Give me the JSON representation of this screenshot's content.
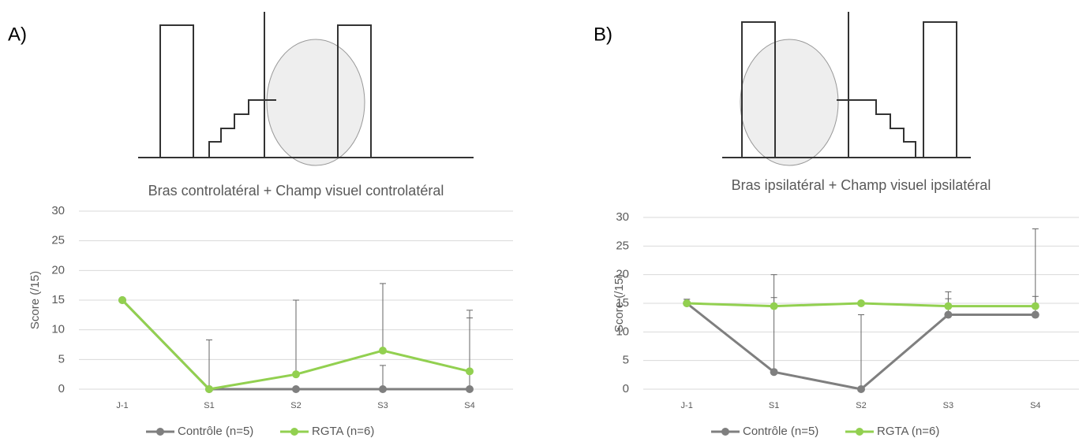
{
  "chart_data": [
    {
      "type": "line",
      "label": "A)",
      "title": "Bras controlatéral + Champ visuel controlatéral",
      "ylabel": "Score (/15)",
      "categories": [
        "J-1",
        "S1",
        "S2",
        "S3",
        "S4"
      ],
      "series": [
        {
          "name": "Contrôle (n=5)",
          "color": "#7f7f7f",
          "values": [
            15,
            0,
            0,
            0,
            0
          ],
          "errors": [
            0,
            0,
            0,
            4,
            12
          ]
        },
        {
          "name": "RGTA (n=6)",
          "color": "#92d050",
          "values": [
            15,
            0,
            2.5,
            6.5,
            3
          ],
          "errors": [
            0,
            8.3,
            12.5,
            11.3,
            10.3
          ]
        }
      ],
      "ylim": [
        0,
        30
      ],
      "yticks": [
        0,
        5,
        10,
        15,
        20,
        25,
        30
      ],
      "grid": true,
      "legend": "bottom"
    },
    {
      "type": "line",
      "label": "B)",
      "title": "Bras ipsilatéral + Champ visuel ipsilatéral",
      "ylabel": "Score (/15)",
      "categories": [
        "J-1",
        "S1",
        "S2",
        "S3",
        "S4"
      ],
      "series": [
        {
          "name": "Contrôle (n=5)",
          "color": "#7f7f7f",
          "values": [
            15,
            3,
            0,
            13,
            13
          ],
          "errors": [
            0.7,
            17,
            13,
            4,
            15
          ]
        },
        {
          "name": "RGTA (n=6)",
          "color": "#92d050",
          "values": [
            15,
            14.5,
            15,
            14.5,
            14.5
          ],
          "errors": [
            0.7,
            1.5,
            0,
            1.3,
            1.7
          ]
        }
      ],
      "ylim": [
        0,
        30
      ],
      "yticks": [
        0,
        5,
        10,
        15,
        20,
        25,
        30
      ],
      "grid": true,
      "legend": "bottom"
    }
  ]
}
